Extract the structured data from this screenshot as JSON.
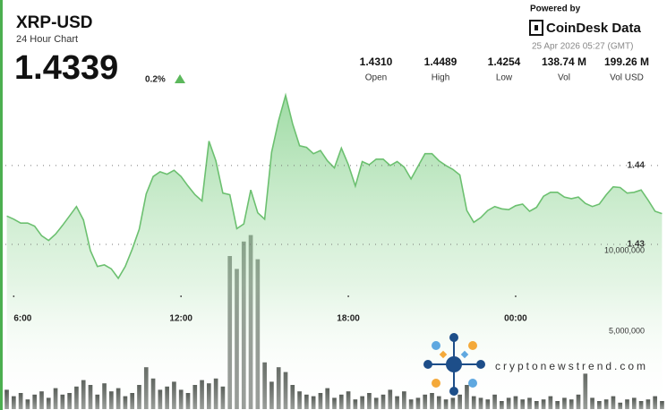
{
  "header": {
    "title": "XRP-USD",
    "subtitle": "24 Hour Chart",
    "price": "1.4339",
    "change": "0.2%",
    "stats": [
      {
        "value": "1.4310",
        "label": "Open"
      },
      {
        "value": "1.4489",
        "label": "High"
      },
      {
        "value": "1.4254",
        "label": "Low"
      },
      {
        "value": "138.74 M",
        "label": "Vol"
      },
      {
        "value": "199.26 M",
        "label": "Vol USD"
      }
    ],
    "powered_by": "Powered by",
    "brand": "CoinDesk Data",
    "timestamp": "25 Apr 2026 05:27 (GMT)"
  },
  "watermark": "cryptonewstrend.com",
  "chart_data": [
    {
      "type": "area",
      "color": "#6cc070",
      "x": [
        5.75,
        6,
        6.25,
        6.5,
        6.75,
        7,
        7.25,
        7.5,
        7.75,
        8,
        8.25,
        8.5,
        8.75,
        9,
        9.25,
        9.5,
        9.75,
        10,
        10.25,
        10.5,
        10.75,
        11,
        11.25,
        11.5,
        11.75,
        12,
        12.25,
        12.5,
        12.75,
        13,
        13.25,
        13.5,
        13.75,
        14,
        14.25,
        14.5,
        14.75,
        15,
        15.25,
        15.5,
        15.75,
        16,
        16.25,
        16.5,
        16.75,
        17,
        17.25,
        17.5,
        17.75,
        18,
        18.25,
        18.5,
        18.75,
        19,
        19.25,
        19.5,
        19.75,
        20,
        20.25,
        20.5,
        20.75,
        21,
        21.25,
        21.5,
        21.75,
        22,
        22.25,
        22.5,
        22.75,
        23,
        23.25,
        23.5,
        23.75,
        24,
        24.25,
        24.5,
        24.75,
        25,
        25.25,
        25.5,
        25.75,
        26,
        26.25,
        26.5,
        26.75,
        27,
        27.25,
        27.5,
        27.75,
        28,
        28.25,
        28.5,
        28.75,
        29,
        29.25
      ],
      "values": [
        1.4336,
        1.4332,
        1.4327,
        1.4327,
        1.4323,
        1.4311,
        1.4305,
        1.4313,
        1.4324,
        1.4336,
        1.4348,
        1.4331,
        1.4292,
        1.4272,
        1.4274,
        1.4269,
        1.4257,
        1.4272,
        1.4294,
        1.4319,
        1.4364,
        1.4386,
        1.4392,
        1.4389,
        1.4394,
        1.4386,
        1.4374,
        1.4363,
        1.4355,
        1.4431,
        1.4406,
        1.4365,
        1.4363,
        1.432,
        1.4326,
        1.4369,
        1.434,
        1.4332,
        1.4417,
        1.4457,
        1.4489,
        1.4453,
        1.4425,
        1.4423,
        1.4415,
        1.4419,
        1.4406,
        1.4397,
        1.4422,
        1.4401,
        1.4374,
        1.4405,
        1.4401,
        1.4408,
        1.4408,
        1.44,
        1.4405,
        1.4398,
        1.4383,
        1.4399,
        1.4415,
        1.4415,
        1.4406,
        1.44,
        1.4395,
        1.4388,
        1.4343,
        1.4328,
        1.4334,
        1.4343,
        1.4348,
        1.4345,
        1.4344,
        1.4349,
        1.4351,
        1.4342,
        1.4347,
        1.4361,
        1.4366,
        1.4366,
        1.436,
        1.4358,
        1.436,
        1.4352,
        1.4348,
        1.4351,
        1.4363,
        1.4373,
        1.4372,
        1.4365,
        1.4366,
        1.4369,
        1.4356,
        1.4342,
        1.4339
      ],
      "xlim": [
        5.7,
        29.3
      ],
      "xticks": [
        {
          "value": 6,
          "label": "6:00"
        },
        {
          "value": 12,
          "label": "12:00"
        },
        {
          "value": 18,
          "label": "18:00"
        },
        {
          "value": 24,
          "label": "00:00"
        }
      ],
      "ylim": [
        1.4216,
        1.4502
      ],
      "yticks": [
        1.44,
        1.43
      ],
      "grid": true
    },
    {
      "type": "bar",
      "color": "#5a5e5a",
      "x": [
        5.75,
        6,
        6.25,
        6.5,
        6.75,
        7,
        7.25,
        7.5,
        7.75,
        8,
        8.25,
        8.5,
        8.75,
        9,
        9.25,
        9.5,
        9.75,
        10,
        10.25,
        10.5,
        10.75,
        11,
        11.25,
        11.5,
        11.75,
        12,
        12.25,
        12.5,
        12.75,
        13,
        13.25,
        13.5,
        13.75,
        14,
        14.25,
        14.5,
        14.75,
        15,
        15.25,
        15.5,
        15.75,
        16,
        16.25,
        16.5,
        16.75,
        17,
        17.25,
        17.5,
        17.75,
        18,
        18.25,
        18.5,
        18.75,
        19,
        19.25,
        19.5,
        19.75,
        20,
        20.25,
        20.5,
        20.75,
        21,
        21.25,
        21.5,
        21.75,
        22,
        22.25,
        22.5,
        22.75,
        23,
        23.25,
        23.5,
        23.75,
        24,
        24.25,
        24.5,
        24.75,
        25,
        25.25,
        25.5,
        25.75,
        26,
        26.25,
        26.5,
        26.75,
        27,
        27.25,
        27.5,
        27.75,
        28,
        28.25,
        28.5,
        28.75,
        29,
        29.25
      ],
      "values": [
        1200000,
        800000,
        1000000,
        600000,
        900000,
        1100000,
        700000,
        1300000,
        900000,
        1000000,
        1400000,
        1800000,
        1500000,
        900000,
        1600000,
        1100000,
        1300000,
        800000,
        1000000,
        1500000,
        2600000,
        1900000,
        1200000,
        1400000,
        1700000,
        1200000,
        1000000,
        1500000,
        1800000,
        1600000,
        1900000,
        1400000,
        9500000,
        8700000,
        10400000,
        10800000,
        9300000,
        2900000,
        1700000,
        2600000,
        2300000,
        1500000,
        1100000,
        900000,
        800000,
        1000000,
        1300000,
        700000,
        900000,
        1100000,
        600000,
        800000,
        1000000,
        700000,
        900000,
        1200000,
        800000,
        1100000,
        600000,
        700000,
        900000,
        1000000,
        800000,
        600000,
        700000,
        900000,
        1500000,
        800000,
        700000,
        600000,
        900000,
        500000,
        700000,
        800000,
        600000,
        700000,
        500000,
        600000,
        800000,
        500000,
        700000,
        600000,
        900000,
        2200000,
        700000,
        500000,
        600000,
        800000,
        400000,
        600000,
        700000,
        500000,
        600000,
        800000,
        500000
      ],
      "xlim": [
        5.7,
        29.3
      ],
      "ylim": [
        0,
        11000000
      ],
      "yticks": [
        {
          "value": 10000000,
          "label": "10,000,000"
        },
        {
          "value": 5000000,
          "label": "5,000,000"
        }
      ]
    }
  ]
}
